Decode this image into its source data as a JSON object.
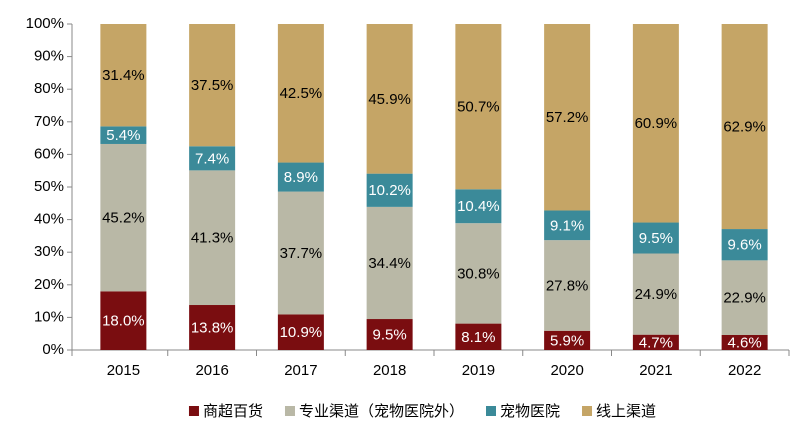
{
  "chart_data": {
    "type": "stacked-bar",
    "categories": [
      "2015",
      "2016",
      "2017",
      "2018",
      "2019",
      "2020",
      "2021",
      "2022"
    ],
    "series": [
      {
        "name": "商超百货",
        "color": "#7a0d10",
        "label_color": "#ffffff",
        "values": [
          18.0,
          13.8,
          10.9,
          9.5,
          8.1,
          5.9,
          4.7,
          4.6
        ],
        "value_labels": [
          "18.0%",
          "13.8%",
          "10.9%",
          "9.5%",
          "8.1%",
          "5.9%",
          "4.7%",
          "4.6%"
        ]
      },
      {
        "name": "专业渠道（宠物医院外）",
        "color": "#b9b8a6",
        "label_color": "#000000",
        "values": [
          45.2,
          41.3,
          37.7,
          34.4,
          30.8,
          27.8,
          24.9,
          22.9
        ],
        "value_labels": [
          "45.2%",
          "41.3%",
          "37.7%",
          "34.4%",
          "30.8%",
          "27.8%",
          "24.9%",
          "22.9%"
        ]
      },
      {
        "name": "宠物医院",
        "color": "#3b8a99",
        "label_color": "#ffffff",
        "values": [
          5.4,
          7.4,
          8.9,
          10.2,
          10.4,
          9.1,
          9.5,
          9.6
        ],
        "value_labels": [
          "5.4%",
          "7.4%",
          "8.9%",
          "10.2%",
          "10.4%",
          "9.1%",
          "9.5%",
          "9.6%"
        ]
      },
      {
        "name": "线上渠道",
        "color": "#c5a566",
        "label_color": "#000000",
        "values": [
          31.4,
          37.5,
          42.5,
          45.9,
          50.7,
          57.2,
          60.9,
          62.9
        ],
        "value_labels": [
          "31.4%",
          "37.5%",
          "42.5%",
          "45.9%",
          "50.7%",
          "57.2%",
          "60.9%",
          "62.9%"
        ]
      }
    ],
    "ylim": [
      0,
      100
    ],
    "yticks": [
      {
        "value": 0,
        "label": "0%"
      },
      {
        "value": 10,
        "label": "10%"
      },
      {
        "value": 20,
        "label": "20%"
      },
      {
        "value": 30,
        "label": "30%"
      },
      {
        "value": 40,
        "label": "40%"
      },
      {
        "value": 50,
        "label": "50%"
      },
      {
        "value": 60,
        "label": "60%"
      },
      {
        "value": 70,
        "label": "70%"
      },
      {
        "value": 80,
        "label": "80%"
      },
      {
        "value": 90,
        "label": "90%"
      },
      {
        "value": 100,
        "label": "100%"
      }
    ],
    "grid": false,
    "legend": "bottom"
  }
}
